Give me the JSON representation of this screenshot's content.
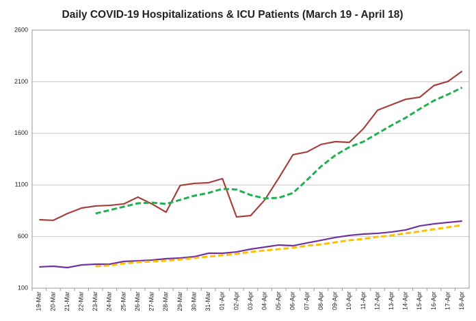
{
  "chart_data": {
    "type": "line",
    "title": "Daily COVID-19 Hospitalizations & ICU Patients (March 19 - April 18)",
    "categories": [
      "19-Mar",
      "20-Mar",
      "21-Mar",
      "22-Mar",
      "23-Mar",
      "24-Mar",
      "25-Mar",
      "26-Mar",
      "27-Mar",
      "28-Mar",
      "29-Mar",
      "30-Mar",
      "31-Mar",
      "01-Apr",
      "02-Apr",
      "03-Apr",
      "04-Apr",
      "05-Apr",
      "06-Apr",
      "07-Apr",
      "08-Apr",
      "09-Apr",
      "10-Apr",
      "11-Apr",
      "12-Apr",
      "13-Apr",
      "14-Apr",
      "15-Apr",
      "16-Apr",
      "17-Apr",
      "18-Apr"
    ],
    "series": [
      {
        "color": "#a5403c",
        "dashed": false,
        "values": [
          763,
          757,
          823,
          876,
          896,
          902,
          916,
          982,
          916,
          836,
          1095,
          1115,
          1121,
          1161,
          790,
          803,
          955,
          1168,
          1393,
          1420,
          1493,
          1519,
          1513,
          1645,
          1824,
          1877,
          1930,
          1950,
          2063,
          2103,
          2202
        ]
      },
      {
        "color": "#1fb04f",
        "dashed": true,
        "values": [
          null,
          null,
          null,
          null,
          823,
          856,
          889,
          922,
          929,
          916,
          955,
          995,
          1022,
          1062,
          1055,
          1002,
          969,
          975,
          1022,
          1148,
          1280,
          1387,
          1466,
          1519,
          1599,
          1678,
          1751,
          1837,
          1917,
          1977,
          2043
        ]
      },
      {
        "color": "#7030a0",
        "dashed": false,
        "values": [
          306,
          312,
          299,
          325,
          332,
          332,
          359,
          365,
          372,
          385,
          392,
          405,
          438,
          438,
          451,
          478,
          498,
          518,
          511,
          538,
          564,
          591,
          611,
          624,
          631,
          644,
          664,
          703,
          723,
          737,
          750
        ]
      },
      {
        "color": "#ffc000",
        "dashed": true,
        "values": [
          null,
          null,
          null,
          null,
          312,
          319,
          339,
          352,
          359,
          365,
          378,
          392,
          405,
          418,
          432,
          451,
          465,
          478,
          491,
          511,
          524,
          544,
          564,
          577,
          597,
          611,
          631,
          650,
          670,
          690,
          710
        ]
      }
    ],
    "ylim": [
      100,
      2600
    ],
    "yticks": [
      100,
      600,
      1100,
      1600,
      2100,
      2600
    ],
    "grid": true
  }
}
